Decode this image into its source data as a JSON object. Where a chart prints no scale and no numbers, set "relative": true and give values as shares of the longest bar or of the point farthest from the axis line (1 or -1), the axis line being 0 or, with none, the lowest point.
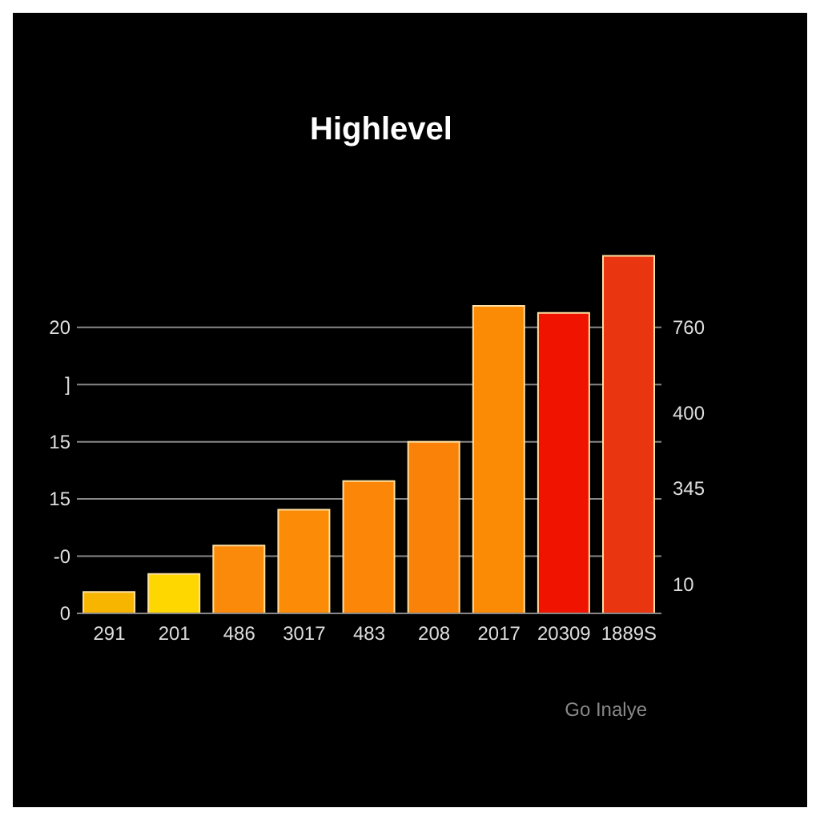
{
  "chart_data": {
    "type": "bar",
    "title": "Highlevel",
    "relative": true,
    "categories": [
      "291",
      "201",
      "486",
      "3017",
      "483",
      "208",
      "2017",
      "20309",
      "1889S"
    ],
    "values": [
      0.06,
      0.11,
      0.19,
      0.29,
      0.37,
      0.48,
      0.86,
      0.84,
      1
    ],
    "colors": [
      "#f7b500",
      "#ffd700",
      "#fb8a0a",
      "#fc8c08",
      "#fb8608",
      "#fb8208",
      "#fb8a05",
      "#f01400",
      "#e93510"
    ],
    "grid": "y",
    "annotations": [
      "0",
      "-0",
      "15",
      "15",
      "]",
      "20",
      "10",
      "345",
      "400",
      "760",
      "Go Inalye"
    ]
  }
}
